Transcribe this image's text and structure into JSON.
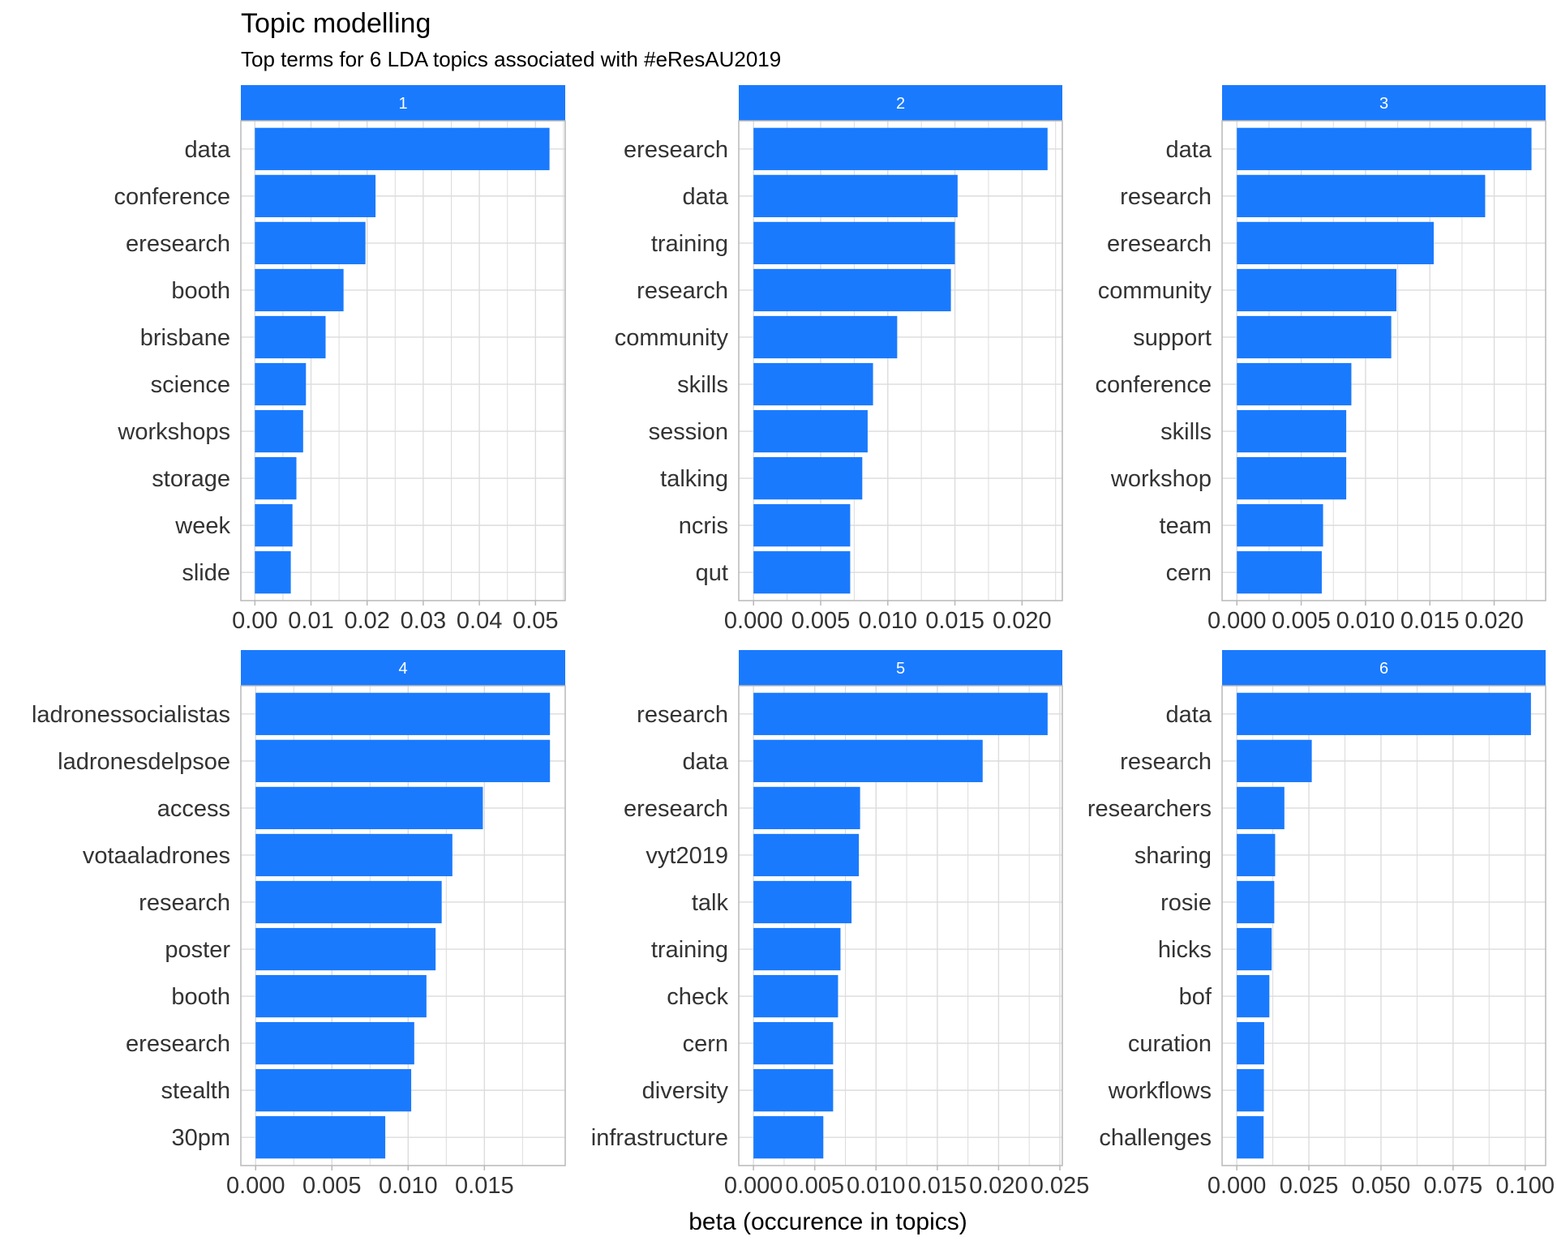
{
  "title": "Topic modelling",
  "subtitle": "Top terms for 6 LDA topics associated with #eResAU2019",
  "colors": {
    "bar": "#1a7afe",
    "strip": "#1a7afe",
    "grid": "#dcdcdc",
    "panel_border": "#b8b8b8",
    "text": "#333333"
  },
  "chart_data": [
    {
      "type": "bar",
      "orientation": "horizontal",
      "facet": "1",
      "categories": [
        "data",
        "conference",
        "eresearch",
        "booth",
        "brisbane",
        "science",
        "workshops",
        "storage",
        "week",
        "slide"
      ],
      "values": [
        0.0525,
        0.0215,
        0.0197,
        0.0158,
        0.0126,
        0.0091,
        0.0086,
        0.0074,
        0.0067,
        0.0064
      ],
      "xlim": [
        -0.0025,
        0.0553
      ],
      "ticks": [
        0,
        0.01,
        0.02,
        0.03,
        0.04,
        0.05
      ],
      "tick_labels": [
        "0.00",
        "0.01",
        "0.02",
        "0.03",
        "0.04",
        "0.05"
      ]
    },
    {
      "type": "bar",
      "orientation": "horizontal",
      "facet": "2",
      "categories": [
        "eresearch",
        "data",
        "training",
        "research",
        "community",
        "skills",
        "session",
        "talking",
        "ncris",
        "qut"
      ],
      "values": [
        0.0219,
        0.0152,
        0.015,
        0.0147,
        0.0107,
        0.0089,
        0.0085,
        0.0081,
        0.0072,
        0.0072
      ],
      "xlim": [
        -0.0011,
        0.023
      ],
      "ticks": [
        0,
        0.005,
        0.01,
        0.015,
        0.02
      ],
      "tick_labels": [
        "0.000",
        "0.005",
        "0.010",
        "0.015",
        "0.020"
      ]
    },
    {
      "type": "bar",
      "orientation": "horizontal",
      "facet": "3",
      "categories": [
        "data",
        "research",
        "eresearch",
        "community",
        "support",
        "conference",
        "skills",
        "workshop",
        "team",
        "cern"
      ],
      "values": [
        0.0229,
        0.0193,
        0.0153,
        0.0124,
        0.012,
        0.0089,
        0.0085,
        0.0085,
        0.0067,
        0.0066
      ],
      "xlim": [
        -0.00115,
        0.024
      ],
      "ticks": [
        0,
        0.005,
        0.01,
        0.015,
        0.02
      ],
      "tick_labels": [
        "0.000",
        "0.005",
        "0.010",
        "0.015",
        "0.020"
      ]
    },
    {
      "type": "bar",
      "orientation": "horizontal",
      "facet": "4",
      "categories": [
        "ladronessocialistas",
        "ladronesdelpsoe",
        "access",
        "votaaladrones",
        "research",
        "poster",
        "booth",
        "eresearch",
        "stealth",
        "30pm"
      ],
      "values": [
        0.0193,
        0.0193,
        0.0149,
        0.0129,
        0.0122,
        0.0118,
        0.0112,
        0.0104,
        0.0102,
        0.0085
      ],
      "xlim": [
        -0.00097,
        0.0203
      ],
      "ticks": [
        0,
        0.005,
        0.01,
        0.015
      ],
      "tick_labels": [
        "0.000",
        "0.005",
        "0.010",
        "0.015"
      ]
    },
    {
      "type": "bar",
      "orientation": "horizontal",
      "facet": "5",
      "categories": [
        "research",
        "data",
        "eresearch",
        "vyt2019",
        "talk",
        "training",
        "check",
        "cern",
        "diversity",
        "infrastructure"
      ],
      "values": [
        0.024,
        0.0187,
        0.0087,
        0.0086,
        0.008,
        0.0071,
        0.0069,
        0.0065,
        0.0065,
        0.0057
      ],
      "xlim": [
        -0.0012,
        0.0252
      ],
      "ticks": [
        0,
        0.005,
        0.01,
        0.015,
        0.02,
        0.025
      ],
      "tick_labels": [
        "0.000",
        "0.005",
        "0.010",
        "0.015",
        "0.020",
        "0.025"
      ]
    },
    {
      "type": "bar",
      "orientation": "horizontal",
      "facet": "6",
      "categories": [
        "data",
        "research",
        "researchers",
        "sharing",
        "rosie",
        "hicks",
        "bof",
        "curation",
        "workflows",
        "challenges"
      ],
      "values": [
        0.102,
        0.026,
        0.0165,
        0.0133,
        0.013,
        0.0121,
        0.0113,
        0.0095,
        0.0094,
        0.0093
      ],
      "xlim": [
        -0.0051,
        0.1071
      ],
      "ticks": [
        0,
        0.025,
        0.05,
        0.075,
        0.1
      ],
      "tick_labels": [
        "0.000",
        "0.025",
        "0.050",
        "0.075",
        "0.100"
      ]
    }
  ],
  "xlabel": "beta (occurence in topics)",
  "ylabel": ""
}
